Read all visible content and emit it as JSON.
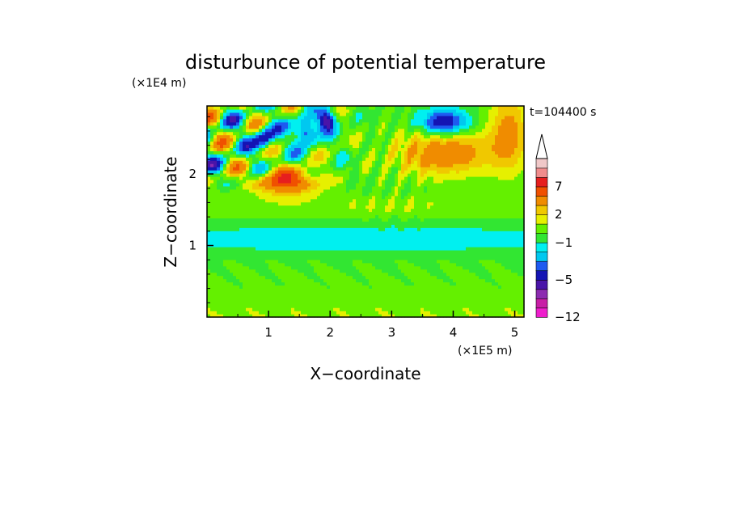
{
  "chart_data": {
    "type": "heatmap",
    "title": "disturbunce of potential temperature",
    "time_label": "t=104400 s",
    "xlabel": "X−coordinate",
    "ylabel": "Z−coordinate",
    "x_unit": "(×1E5 m)",
    "y_unit": "(×1E4 m)",
    "xlim": [
      0,
      5.15
    ],
    "ylim": [
      0,
      2.95
    ],
    "x_ticks": [
      "1",
      "2",
      "3",
      "4",
      "5"
    ],
    "y_ticks": [
      "1",
      "2"
    ],
    "colorbar": {
      "levels": [
        -12,
        -10,
        -8,
        -6,
        -5,
        -4,
        -3,
        -2,
        -1,
        0,
        1,
        2,
        3,
        5,
        7,
        9,
        12
      ],
      "tick_labels": [
        "−12",
        "−5",
        "−1",
        "2",
        "7"
      ],
      "colors": [
        "#ee1ecc",
        "#c81ea6",
        "#8c2bb0",
        "#4a14a8",
        "#1414b4",
        "#1e5af0",
        "#00c8f0",
        "#00f0f0",
        "#32e632",
        "#64f000",
        "#e6f000",
        "#f0c800",
        "#f08c00",
        "#f05000",
        "#e61e1e",
        "#f08c8c",
        "#f0c8c8"
      ],
      "extend": "max"
    },
    "features": [
      {
        "region": "upper layer z 2.0–2.9, x 0–3",
        "pattern": "alternating positive/negative wave cells",
        "min": -8,
        "max": 7
      },
      {
        "region": "upper layer z 2.0–2.9, x 3.5–4.2",
        "pattern": "negative cell",
        "min": -5
      },
      {
        "region": "upper layer z 1.9–2.6, x 3.3–4.5",
        "pattern": "positive band",
        "max": 5
      },
      {
        "region": "mid layer z 0.9–1.4",
        "pattern": "weak negative band",
        "value": -1
      },
      {
        "region": "lower layer z 0–0.8",
        "pattern": "weak positive",
        "value": 1
      }
    ]
  }
}
